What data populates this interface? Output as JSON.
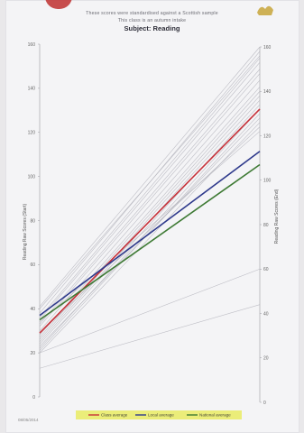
{
  "header": {
    "line1": "These scores were standardised against a Scottish sample",
    "line2": "This class is an autumn intake",
    "title": "Subject: Reading"
  },
  "footer": {
    "date": "08/05/2014"
  },
  "colors": {
    "background": "#f4f4f6",
    "individual": "#b4b4bc",
    "class_average": "#c8323a",
    "local_average": "#2f3a8c",
    "national_average": "#3e7a34",
    "legend_bg": "#e9ec6e"
  },
  "chart_data": {
    "type": "line",
    "title": "Subject: Reading",
    "ylabel": "Reading Raw Scores (Start)",
    "ylabel_right": "Reading Raw Scores (End)",
    "ylim": [
      0,
      160
    ],
    "yticks": [
      0,
      20,
      40,
      60,
      80,
      100,
      120,
      140,
      160
    ],
    "x": [
      "Start",
      "End"
    ],
    "grid": false,
    "legend_position": "bottom",
    "legend": [
      "Class average",
      "Local average",
      "National average"
    ],
    "pupils": [
      [
        41,
        160
      ],
      [
        38,
        158
      ],
      [
        40,
        156
      ],
      [
        36,
        155
      ],
      [
        35,
        153
      ],
      [
        33,
        150
      ],
      [
        32,
        148
      ],
      [
        30,
        145
      ],
      [
        28,
        142
      ],
      [
        27,
        140
      ],
      [
        26,
        138
      ],
      [
        25,
        136
      ],
      [
        24,
        134
      ],
      [
        22,
        132
      ],
      [
        21,
        130
      ],
      [
        23,
        128
      ],
      [
        20,
        126
      ],
      [
        29,
        124
      ],
      [
        34,
        122
      ],
      [
        20,
        60
      ],
      [
        13,
        44
      ]
    ],
    "series": [
      {
        "name": "Class average",
        "values": [
          29,
          132
        ],
        "color": "#c8323a"
      },
      {
        "name": "Local average",
        "values": [
          37,
          113
        ],
        "color": "#2f3a8c"
      },
      {
        "name": "National average",
        "values": [
          35,
          107
        ],
        "color": "#3e7a34"
      }
    ]
  }
}
